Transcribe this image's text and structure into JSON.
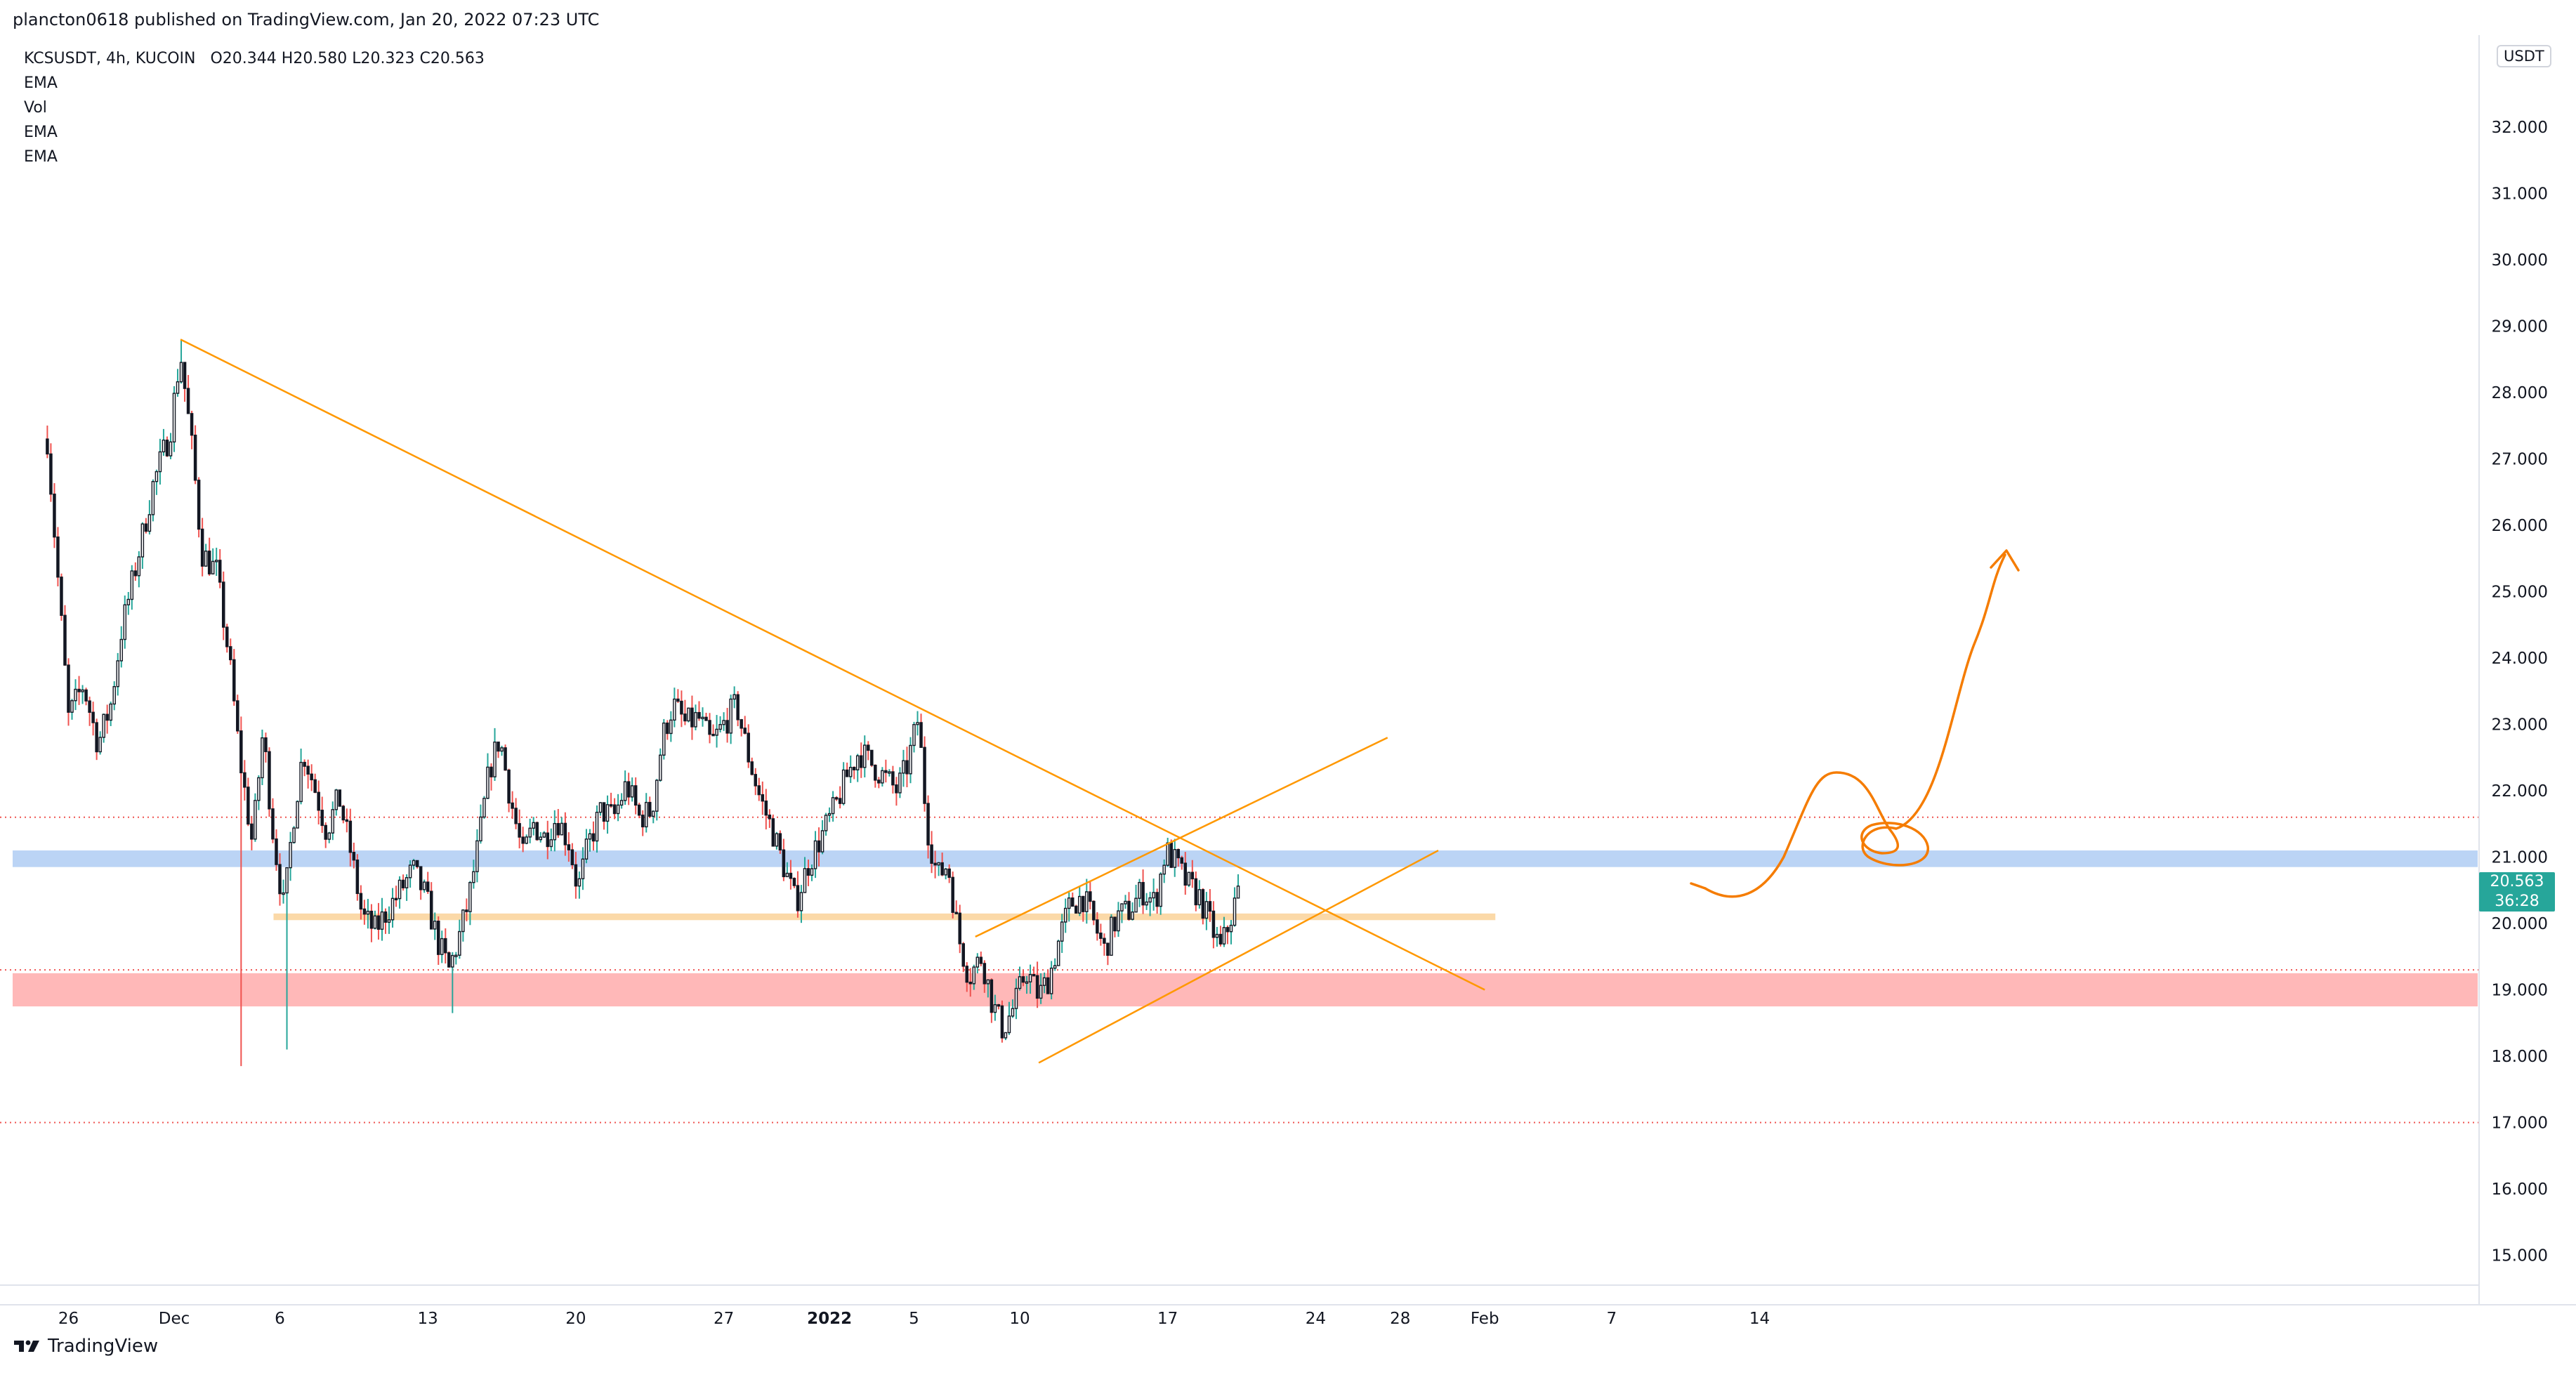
{
  "header": {
    "published": "plancton0618 published on TradingView.com, Jan 20, 2022 07:23 UTC"
  },
  "legend": {
    "symbol": "KCSUSDT, 4h, KUCOIN",
    "ohlc": "O20.344 H20.580 L20.323 C20.563",
    "indicators": [
      "EMA",
      "Vol",
      "EMA",
      "EMA"
    ]
  },
  "axis": {
    "currency": "USDT",
    "current_price": "20.563",
    "countdown": "36:28"
  },
  "footer": {
    "brand": "TradingView"
  },
  "colors": {
    "up": "#26a69a",
    "down": "#ef5350",
    "candle_body_up": "#ffffff",
    "candle_dark": "#131722",
    "trendline": "#ff9800",
    "drawing": "#f57c00",
    "resistance_band": "#bbd4f5",
    "support_band": "#ffb8b8",
    "pivot_band": "#fbd9a8",
    "dotted_level": "#ef5350"
  },
  "chart_data": {
    "type": "candlestick",
    "symbol": "KCSUSDT",
    "interval": "4h",
    "exchange": "KUCOIN",
    "y_axis_ticks": [
      "15.000",
      "16.000",
      "17.000",
      "18.000",
      "19.000",
      "20.000",
      "21.000",
      "22.000",
      "23.000",
      "24.000",
      "25.000",
      "26.000",
      "27.000",
      "28.000",
      "29.000",
      "30.000",
      "31.000",
      "32.000"
    ],
    "ylim": [
      14.3,
      32.8
    ],
    "x_axis_ticks": [
      "26",
      "Dec",
      "6",
      "13",
      "20",
      "27",
      "2022",
      "5",
      "10",
      "17",
      "24",
      "28",
      "Feb",
      "7",
      "14"
    ],
    "x_tick_days": [
      -5,
      0,
      5,
      12,
      19,
      26,
      31,
      35,
      40,
      47,
      54,
      58,
      62,
      68,
      75
    ],
    "x_tick_note": "days counted from Dec 1 2021",
    "price_path": [
      {
        "day": -6.0,
        "close": 27.3
      },
      {
        "day": -5.5,
        "close": 25.2
      },
      {
        "day": -5.0,
        "close": 23.1
      },
      {
        "day": -4.3,
        "close": 23.6
      },
      {
        "day": -3.6,
        "close": 22.7
      },
      {
        "day": -3.0,
        "close": 23.3
      },
      {
        "day": -2.5,
        "close": 24.4
      },
      {
        "day": -1.8,
        "close": 25.4
      },
      {
        "day": -1.0,
        "close": 26.6
      },
      {
        "day": -0.2,
        "close": 27.4
      },
      {
        "day": 0.3,
        "close": 28.6
      },
      {
        "day": 0.9,
        "close": 27.0
      },
      {
        "day": 1.3,
        "close": 25.6
      },
      {
        "day": 2.0,
        "close": 25.3
      },
      {
        "day": 2.6,
        "close": 24.0
      },
      {
        "day": 3.1,
        "close": 22.5
      },
      {
        "day": 3.7,
        "close": 21.2
      },
      {
        "day": 4.2,
        "close": 22.9
      },
      {
        "day": 4.7,
        "close": 21.3
      },
      {
        "day": 5.2,
        "close": 20.2
      },
      {
        "day": 5.6,
        "close": 21.5
      },
      {
        "day": 6.1,
        "close": 22.6
      },
      {
        "day": 6.6,
        "close": 22.1
      },
      {
        "day": 7.2,
        "close": 21.4
      },
      {
        "day": 7.8,
        "close": 21.9
      },
      {
        "day": 8.4,
        "close": 21.0
      },
      {
        "day": 8.9,
        "close": 20.1
      },
      {
        "day": 9.5,
        "close": 19.9
      },
      {
        "day": 10.1,
        "close": 20.2
      },
      {
        "day": 10.7,
        "close": 20.5
      },
      {
        "day": 11.3,
        "close": 20.8
      },
      {
        "day": 11.9,
        "close": 20.4
      },
      {
        "day": 12.5,
        "close": 19.7
      },
      {
        "day": 13.0,
        "close": 19.3
      },
      {
        "day": 13.4,
        "close": 19.7
      },
      {
        "day": 13.9,
        "close": 20.3
      },
      {
        "day": 14.4,
        "close": 21.2
      },
      {
        "day": 14.9,
        "close": 22.3
      },
      {
        "day": 15.4,
        "close": 22.8
      },
      {
        "day": 15.9,
        "close": 21.9
      },
      {
        "day": 16.5,
        "close": 21.0
      },
      {
        "day": 17.0,
        "close": 21.5
      },
      {
        "day": 17.5,
        "close": 21.3
      },
      {
        "day": 18.1,
        "close": 21.6
      },
      {
        "day": 18.7,
        "close": 21.2
      },
      {
        "day": 19.1,
        "close": 20.5
      },
      {
        "day": 19.6,
        "close": 21.2
      },
      {
        "day": 20.2,
        "close": 21.7
      },
      {
        "day": 20.8,
        "close": 21.6
      },
      {
        "day": 21.4,
        "close": 22.1
      },
      {
        "day": 22.0,
        "close": 21.6
      },
      {
        "day": 22.6,
        "close": 21.7
      },
      {
        "day": 23.1,
        "close": 22.8
      },
      {
        "day": 23.6,
        "close": 23.3
      },
      {
        "day": 24.2,
        "close": 23.0
      },
      {
        "day": 24.8,
        "close": 23.1
      },
      {
        "day": 25.4,
        "close": 22.7
      },
      {
        "day": 26.0,
        "close": 23.0
      },
      {
        "day": 26.6,
        "close": 23.3
      },
      {
        "day": 27.1,
        "close": 22.6
      },
      {
        "day": 27.7,
        "close": 21.9
      },
      {
        "day": 28.3,
        "close": 21.4
      },
      {
        "day": 28.9,
        "close": 20.8
      },
      {
        "day": 29.4,
        "close": 20.3
      },
      {
        "day": 30.0,
        "close": 20.9
      },
      {
        "day": 30.6,
        "close": 21.3
      },
      {
        "day": 31.2,
        "close": 21.7
      },
      {
        "day": 31.8,
        "close": 22.2
      },
      {
        "day": 32.4,
        "close": 22.6
      },
      {
        "day": 33.0,
        "close": 22.4
      },
      {
        "day": 33.6,
        "close": 22.2
      },
      {
        "day": 34.2,
        "close": 22.0
      },
      {
        "day": 34.7,
        "close": 22.4
      },
      {
        "day": 35.2,
        "close": 23.1
      },
      {
        "day": 35.6,
        "close": 21.5
      },
      {
        "day": 36.1,
        "close": 20.7
      },
      {
        "day": 36.6,
        "close": 20.9
      },
      {
        "day": 37.1,
        "close": 19.8
      },
      {
        "day": 37.6,
        "close": 19.2
      },
      {
        "day": 38.2,
        "close": 19.5
      },
      {
        "day": 38.7,
        "close": 18.8
      },
      {
        "day": 39.2,
        "close": 18.4
      },
      {
        "day": 39.8,
        "close": 18.8
      },
      {
        "day": 40.3,
        "close": 19.3
      },
      {
        "day": 40.9,
        "close": 18.9
      },
      {
        "day": 41.4,
        "close": 19.2
      },
      {
        "day": 41.9,
        "close": 19.8
      },
      {
        "day": 42.4,
        "close": 20.3
      },
      {
        "day": 43.0,
        "close": 20.4
      },
      {
        "day": 43.5,
        "close": 20.0
      },
      {
        "day": 44.0,
        "close": 19.6
      },
      {
        "day": 44.6,
        "close": 20.1
      },
      {
        "day": 45.2,
        "close": 20.2
      },
      {
        "day": 45.8,
        "close": 20.5
      },
      {
        "day": 46.4,
        "close": 20.3
      },
      {
        "day": 46.9,
        "close": 21.1
      },
      {
        "day": 47.4,
        "close": 20.9
      },
      {
        "day": 47.9,
        "close": 20.6
      },
      {
        "day": 48.5,
        "close": 20.4
      },
      {
        "day": 49.0,
        "close": 20.0
      },
      {
        "day": 49.5,
        "close": 19.6
      },
      {
        "day": 50.0,
        "close": 20.1
      },
      {
        "day": 50.4,
        "close": 20.56
      }
    ],
    "levels": [
      {
        "kind": "resistance_band",
        "from": 20.85,
        "to": 21.1
      },
      {
        "kind": "pivot_band",
        "from": 20.05,
        "to": 20.15,
        "start_day": 4.7,
        "end_day": 62.5
      },
      {
        "kind": "support_band",
        "from": 18.75,
        "to": 19.25
      },
      {
        "kind": "dotted",
        "value": 21.6
      },
      {
        "kind": "dotted",
        "value": 19.3
      },
      {
        "kind": "dotted",
        "value": 17.0
      }
    ],
    "trendlines": [
      {
        "name": "descending",
        "from": {
          "day": 0.3,
          "price": 28.8
        },
        "to": {
          "day": 62.0,
          "price": 19.0
        }
      },
      {
        "name": "channel-upper",
        "from": {
          "day": 37.9,
          "price": 19.8
        },
        "to": {
          "day": 57.4,
          "price": 22.8
        }
      },
      {
        "name": "channel-lower",
        "from": {
          "day": 40.9,
          "price": 17.9
        },
        "to": {
          "day": 59.8,
          "price": 21.1
        }
      }
    ]
  }
}
